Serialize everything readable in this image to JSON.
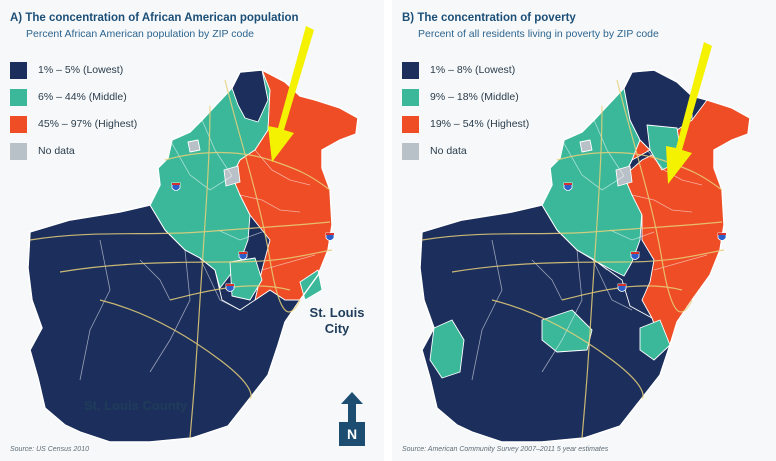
{
  "colors": {
    "low": "#1c2f5c",
    "middle": "#3bb89a",
    "high": "#ee4d26",
    "nodata": "#b8c0c8",
    "arrow": "#f4f200",
    "outline": "#ffffff",
    "road": "#e8d07a"
  },
  "panel_a": {
    "title": "A) The concentration of African American population",
    "subtitle": "Percent African American population by ZIP code",
    "legend": [
      {
        "label": "1% – 5% (Lowest)",
        "level": "low"
      },
      {
        "label": "6% – 44% (Middle)",
        "level": "middle"
      },
      {
        "label": "45% – 97% (Highest)",
        "level": "high"
      },
      {
        "label": "No data",
        "level": "nodata"
      }
    ],
    "label_city": "St. Louis\nCity",
    "label_county": "St. Louis County",
    "source": "Source: US Census 2010",
    "north_label": "N"
  },
  "panel_b": {
    "title": "B) The concentration of poverty",
    "subtitle": "Percent of all residents living in poverty by ZIP code",
    "legend": [
      {
        "label": "1% – 8% (Lowest)",
        "level": "low"
      },
      {
        "label": "9% – 18% (Middle)",
        "level": "middle"
      },
      {
        "label": "19% – 54% (Highest)",
        "level": "high"
      },
      {
        "label": "No data",
        "level": "nodata"
      }
    ],
    "source": "Source: American Community Survey 2007–2011 5 year estimates"
  },
  "icons": {
    "arrow": "down-arrow-highlight-icon",
    "north": "north-arrow-icon",
    "highway": "interstate-shield-icon"
  }
}
